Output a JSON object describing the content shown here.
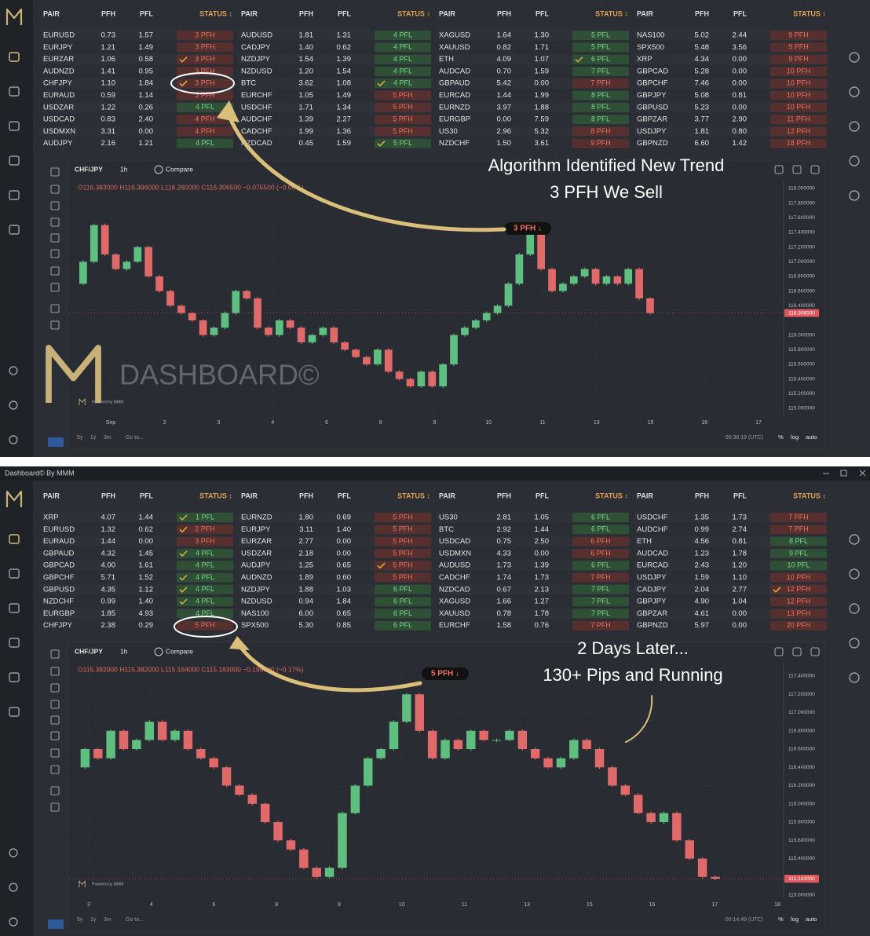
{
  "window_title": "Dashboard© By MMM",
  "panels": [
    {
      "table": {
        "headers": [
          "PAIR",
          "PFH",
          "PFL",
          "STATUS ↕"
        ],
        "groups": [
          {
            "rows": [
              [
                "EURUSD",
                "0.73",
                "1.57",
                "3 PFH"
              ],
              [
                "EURJPY",
                "1.21",
                "1.49",
                "3 PFH"
              ],
              [
                "EURZAR",
                "1.06",
                "0.58",
                "3 PFH"
              ],
              [
                "AUDNZD",
                "1.41",
                "0.95",
                "3 PFH"
              ],
              [
                "CHFJPY",
                "1.10",
                "1.84",
                "3 PFH"
              ],
              [
                "EURAUD",
                "0.59",
                "1.14",
                "3 PFH"
              ],
              [
                "USDZAR",
                "1.22",
                "0.26",
                "4 PFL"
              ],
              [
                "USDCAD",
                "0.83",
                "2.40",
                "4 PFH"
              ],
              [
                "USDMXN",
                "3.31",
                "0.00",
                "4 PFH"
              ],
              [
                "AUDJPY",
                "2.16",
                "1.21",
                "4 PFL"
              ]
            ],
            "checked": [
              2,
              4
            ]
          },
          {
            "rows": [
              [
                "AUDUSD",
                "1.81",
                "1.31",
                "4 PFL"
              ],
              [
                "CADJPY",
                "1.40",
                "0.62",
                "4 PFL"
              ],
              [
                "NZDJPY",
                "1.54",
                "1.39",
                "4 PFL"
              ],
              [
                "NZDUSD",
                "1.20",
                "1.54",
                "4 PFL"
              ],
              [
                "BTC",
                "3.62",
                "1.08",
                "4 PFL"
              ],
              [
                "EURCHF",
                "1.05",
                "1.49",
                "5 PFH"
              ],
              [
                "USDCHF",
                "1.71",
                "1.34",
                "5 PFH"
              ],
              [
                "AUDCHF",
                "1.39",
                "2.27",
                "5 PFH"
              ],
              [
                "CADCHF",
                "1.99",
                "1.36",
                "5 PFH"
              ],
              [
                "NZDCAD",
                "0.45",
                "1.59",
                "5 PFL"
              ]
            ],
            "checked": [
              4,
              9
            ]
          },
          {
            "rows": [
              [
                "XAGUSD",
                "1.64",
                "1.30",
                "5 PFL"
              ],
              [
                "XAUUSD",
                "0.82",
                "1.71",
                "5 PFL"
              ],
              [
                "ETH",
                "4.09",
                "1.07",
                "6 PFL"
              ],
              [
                "AUDCAD",
                "0.70",
                "1.59",
                "7 PFL"
              ],
              [
                "GBPAUD",
                "5.42",
                "0.00",
                "7 PFH"
              ],
              [
                "EURCAD",
                "1.44",
                "1.99",
                "8 PFL"
              ],
              [
                "EURNZD",
                "3.97",
                "1.88",
                "8 PFL"
              ],
              [
                "EURGBP",
                "0.00",
                "7.59",
                "8 PFL"
              ],
              [
                "US30",
                "2.96",
                "5.32",
                "8 PFH"
              ],
              [
                "NZDCHF",
                "1.50",
                "3.61",
                "9 PFH"
              ]
            ],
            "checked": [
              2
            ]
          },
          {
            "rows": [
              [
                "NAS100",
                "5.02",
                "2.44",
                "9 PFH"
              ],
              [
                "SPX500",
                "5.48",
                "3.56",
                "9 PFH"
              ],
              [
                "XRP",
                "4.34",
                "0.00",
                "9 PFH"
              ],
              [
                "GBPCAD",
                "5.28",
                "0.00",
                "10 PFH"
              ],
              [
                "GBPCHF",
                "7.46",
                "0.00",
                "10 PFH"
              ],
              [
                "GBPJPY",
                "5.08",
                "0.81",
                "10 PFH"
              ],
              [
                "GBPUSD",
                "5.23",
                "0.00",
                "10 PFH"
              ],
              [
                "GBPZAR",
                "3.77",
                "2.90",
                "11 PFH"
              ],
              [
                "USDJPY",
                "1.81",
                "0.80",
                "12 PFH"
              ],
              [
                "GBPNZD",
                "6.60",
                "1.42",
                "18 PFH"
              ]
            ],
            "checked": []
          }
        ]
      },
      "chart": {
        "symbol": "CHF/JPY",
        "interval": "1h",
        "compare": "Compare",
        "ohlc": "O116.383000  H116.396000  L116.260000  C116.306500  −0.075500 (−0.06%)",
        "ylim": [
          115.0,
          118.0
        ],
        "yticks": [
          {
            "value": 118.0,
            "label": "118.000000"
          },
          {
            "value": 117.8,
            "label": "117.800000"
          },
          {
            "value": 117.6,
            "label": "117.600000"
          },
          {
            "value": 117.4,
            "label": "117.400000"
          },
          {
            "value": 117.2,
            "label": "117.200000"
          },
          {
            "value": 117.0,
            "label": "117.000000"
          },
          {
            "value": 116.8,
            "label": "116.800000"
          },
          {
            "value": 116.6,
            "label": "116.600000"
          },
          {
            "value": 116.4,
            "label": "116.400000"
          },
          {
            "value": 116.0,
            "label": "116.000000"
          },
          {
            "value": 115.8,
            "label": "115.800000"
          },
          {
            "value": 115.6,
            "label": "115.600000"
          },
          {
            "value": 115.4,
            "label": "115.400000"
          },
          {
            "value": 115.2,
            "label": "115.200000"
          },
          {
            "value": 115.0,
            "label": "115.000000"
          }
        ],
        "closes": [
          116.7,
          117.0,
          117.5,
          117.1,
          116.9,
          117.0,
          117.2,
          116.8,
          116.6,
          116.4,
          116.3,
          116.2,
          116.0,
          116.1,
          116.3,
          116.6,
          116.5,
          116.1,
          116.0,
          116.2,
          116.1,
          115.9,
          116.0,
          116.1,
          115.9,
          115.8,
          115.7,
          115.6,
          115.8,
          115.5,
          115.4,
          115.3,
          115.5,
          115.3,
          115.6,
          116.0,
          116.1,
          116.2,
          116.3,
          116.4,
          116.7,
          117.1,
          117.4,
          116.9,
          116.6,
          116.7,
          116.8,
          116.9,
          116.7,
          116.8,
          116.7,
          116.9,
          116.5,
          116.3
        ],
        "last_label": "116.306500",
        "dates": [
          "Sep",
          "2",
          "3",
          "4",
          "6",
          "8",
          "9",
          "10",
          "11",
          "13",
          "15",
          "16",
          "17"
        ],
        "signal": "3 PFH ↓",
        "annotations": [
          "Algorithm Identified New Trend",
          "3 PFH We Sell"
        ],
        "watermark": "DASHBOARD©",
        "powered": "Powered by MMM",
        "ranges": [
          "5y",
          "1y",
          "3m"
        ],
        "goto": "Go to...",
        "clock": "00:38:19 (UTC)",
        "scales": [
          "%",
          "log",
          "auto"
        ]
      }
    },
    {
      "table": {
        "headers": [
          "PAIR",
          "PFH",
          "PFL",
          "STATUS ↕"
        ],
        "groups": [
          {
            "rows": [
              [
                "XRP",
                "4.07",
                "1.44",
                "1 PFL"
              ],
              [
                "EURUSD",
                "1.32",
                "0.62",
                "2 PFH"
              ],
              [
                "EURAUD",
                "1.44",
                "0.00",
                "3 PFH"
              ],
              [
                "GBPAUD",
                "4.32",
                "1.45",
                "4 PFL"
              ],
              [
                "GBPCAD",
                "4.00",
                "1.61",
                "4 PFL"
              ],
              [
                "GBPCHF",
                "5.71",
                "1.52",
                "4 PFL"
              ],
              [
                "GBPUSD",
                "4.35",
                "1.12",
                "4 PFL"
              ],
              [
                "NZDCHF",
                "0.99",
                "1.40",
                "4 PFL"
              ],
              [
                "EURGBP",
                "1.85",
                "4.93",
                "4 PFL"
              ],
              [
                "CHFJPY",
                "2.38",
                "0.29",
                "5 PFH"
              ]
            ],
            "checked": [
              0,
              1,
              3,
              5,
              6,
              7
            ]
          },
          {
            "rows": [
              [
                "EURNZD",
                "1.80",
                "0.69",
                "5 PFH"
              ],
              [
                "EURJPY",
                "3.11",
                "1.40",
                "5 PFH"
              ],
              [
                "EURZAR",
                "2.77",
                "0.00",
                "5 PFH"
              ],
              [
                "USDZAR",
                "2.18",
                "0.00",
                "5 PFH"
              ],
              [
                "AUDJPY",
                "1.25",
                "0.65",
                "5 PFH"
              ],
              [
                "AUDNZD",
                "1.89",
                "0.60",
                "5 PFH"
              ],
              [
                "NZDJPY",
                "1.88",
                "1.03",
                "6 PFL"
              ],
              [
                "NZDUSD",
                "0.94",
                "1.84",
                "6 PFL"
              ],
              [
                "NAS100",
                "6.00",
                "0.65",
                "6 PFL"
              ],
              [
                "SPX500",
                "5.30",
                "0.85",
                "6 PFL"
              ]
            ],
            "checked": [
              4
            ]
          },
          {
            "rows": [
              [
                "US30",
                "2.81",
                "1.05",
                "6 PFL"
              ],
              [
                "BTC",
                "2.92",
                "1.44",
                "6 PFL"
              ],
              [
                "USDCAD",
                "0.75",
                "2.50",
                "6 PFH"
              ],
              [
                "USDMXN",
                "4.33",
                "0.00",
                "6 PFH"
              ],
              [
                "AUDUSD",
                "1.73",
                "1.39",
                "6 PFL"
              ],
              [
                "CADCHF",
                "1.74",
                "1.73",
                "7 PFH"
              ],
              [
                "NZDCAD",
                "0.67",
                "2.13",
                "7 PFL"
              ],
              [
                "XAGUSD",
                "1.66",
                "1.27",
                "7 PFL"
              ],
              [
                "XAUUSD",
                "0.78",
                "1.78",
                "7 PFL"
              ],
              [
                "EURCHF",
                "1.58",
                "0.76",
                "7 PFH"
              ]
            ],
            "checked": []
          },
          {
            "rows": [
              [
                "USDCHF",
                "1.35",
                "1.73",
                "7 PFH"
              ],
              [
                "AUDCHF",
                "0.99",
                "2.74",
                "7 PFH"
              ],
              [
                "ETH",
                "4.56",
                "0.81",
                "8 PFL"
              ],
              [
                "AUDCAD",
                "1.23",
                "1.78",
                "9 PFL"
              ],
              [
                "EURCAD",
                "2.43",
                "1.20",
                "10 PFL"
              ],
              [
                "USDJPY",
                "1.59",
                "1.10",
                "10 PFH"
              ],
              [
                "CADJPY",
                "2.04",
                "2.77",
                "12 PFH"
              ],
              [
                "GBPJPY",
                "4.90",
                "1.04",
                "12 PFH"
              ],
              [
                "GBPZAR",
                "4.61",
                "0.00",
                "13 PFH"
              ],
              [
                "GBPNZD",
                "5.97",
                "0.00",
                "20 PFH"
              ]
            ],
            "checked": [
              6
            ]
          }
        ]
      },
      "chart": {
        "symbol": "CHF/JPY",
        "interval": "1h",
        "compare": "Compare",
        "ohlc": "O115.382000  H115.382000  L115.164000  C115.183000  −0.198000 (−0.17%)",
        "ylim": [
          115.0,
          117.4
        ],
        "yticks": [
          {
            "value": 117.4,
            "label": "117.400000"
          },
          {
            "value": 117.2,
            "label": "117.200000"
          },
          {
            "value": 117.0,
            "label": "117.000000"
          },
          {
            "value": 116.8,
            "label": "116.800000"
          },
          {
            "value": 116.6,
            "label": "116.600000"
          },
          {
            "value": 116.4,
            "label": "116.400000"
          },
          {
            "value": 116.2,
            "label": "116.200000"
          },
          {
            "value": 116.0,
            "label": "116.000000"
          },
          {
            "value": 115.8,
            "label": "115.800000"
          },
          {
            "value": 115.6,
            "label": "115.600000"
          },
          {
            "value": 115.4,
            "label": "115.400000"
          },
          {
            "value": 115.0,
            "label": "115.000000"
          }
        ],
        "closes": [
          116.4,
          116.6,
          116.5,
          116.8,
          116.6,
          116.7,
          116.9,
          116.7,
          116.8,
          116.6,
          116.5,
          116.4,
          116.2,
          116.1,
          116.0,
          115.8,
          115.6,
          115.5,
          115.3,
          115.2,
          115.3,
          115.9,
          116.2,
          116.5,
          116.6,
          116.9,
          117.2,
          116.8,
          116.5,
          116.7,
          116.6,
          116.8,
          116.7,
          116.7,
          116.8,
          116.6,
          116.5,
          116.4,
          116.5,
          116.7,
          116.6,
          116.4,
          116.2,
          116.1,
          115.9,
          115.8,
          115.9,
          115.6,
          115.4,
          115.2,
          115.18
        ],
        "last_label": "115.183000",
        "dates": [
          "3",
          "4",
          "6",
          "8",
          "9",
          "10",
          "11",
          "13",
          "15",
          "16",
          "17",
          "18"
        ],
        "signal": "5 PFH ↓",
        "annotations": [
          "2 Days Later...",
          "130+ Pips and Running"
        ],
        "powered": "Powered by MMM",
        "ranges": [
          "5y",
          "1y",
          "3m"
        ],
        "goto": "Go to...",
        "clock": "00:14:49 (UTC)",
        "scales": [
          "%",
          "log",
          "auto"
        ]
      }
    }
  ]
}
